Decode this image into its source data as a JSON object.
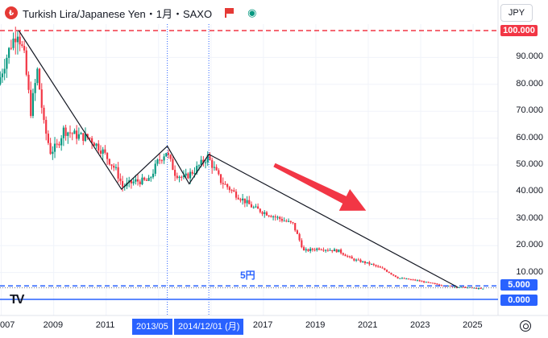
{
  "header": {
    "symbol_logo": "₺",
    "title": "Turkish Lira/Japanese Yen・1月・SAXO",
    "icons": [
      "flag-icon",
      "eye-icon"
    ]
  },
  "currency_button": "JPY",
  "price_axis": {
    "labels": [
      "90.000",
      "80.000",
      "70.000",
      "60.000",
      "50.000",
      "40.000",
      "30.000",
      "20.000",
      "10.000"
    ],
    "badges": [
      {
        "text": "100.000",
        "color": "#f23645"
      },
      {
        "text": "5.000",
        "color": "#2962ff"
      },
      {
        "text": "0.000",
        "color": "#2962ff"
      }
    ]
  },
  "time_axis": {
    "labels": [
      "007",
      "2009",
      "2011",
      "2017",
      "2019",
      "2021",
      "2023",
      "2025"
    ],
    "badges": [
      "2013/05",
      "2014/12/01 (月)"
    ]
  },
  "annotation": "5円",
  "branding": "TV",
  "colors": {
    "up": "#089981",
    "down": "#f23645",
    "trendline": "#131722",
    "blue": "#2962ff",
    "red_dashed": "#f23645",
    "arrow": "#f23645"
  },
  "chart_data": {
    "type": "candlestick",
    "ylim": [
      0,
      100
    ],
    "horizontal_lines": [
      {
        "value": 100,
        "style": "dashed",
        "color": "#f23645"
      },
      {
        "value": 5,
        "style": "dashed",
        "color": "#2962ff"
      },
      {
        "value": 0,
        "style": "solid",
        "color": "#2962ff"
      }
    ],
    "vertical_markers": [
      "2013-05",
      "2014-12"
    ],
    "trendline_points": [
      [
        "2007-09",
        100
      ],
      [
        "2011-08",
        41
      ],
      [
        "2013-05",
        57
      ],
      [
        "2014-03",
        43
      ],
      [
        "2014-12",
        54
      ],
      [
        "2024-06",
        4.5
      ]
    ],
    "price_path": [
      [
        "2006-12",
        80
      ],
      [
        "2007-03",
        88
      ],
      [
        "2007-06",
        95
      ],
      [
        "2007-09",
        100
      ],
      [
        "2007-12",
        90
      ],
      [
        "2008-03",
        70
      ],
      [
        "2008-06",
        85
      ],
      [
        "2008-09",
        65
      ],
      [
        "2008-12",
        55
      ],
      [
        "2009-03",
        57
      ],
      [
        "2009-06",
        63
      ],
      [
        "2009-12",
        61
      ],
      [
        "2010-06",
        60
      ],
      [
        "2010-12",
        55
      ],
      [
        "2011-06",
        48
      ],
      [
        "2011-09",
        42
      ],
      [
        "2012-03",
        44
      ],
      [
        "2012-09",
        44
      ],
      [
        "2013-01",
        51
      ],
      [
        "2013-05",
        55
      ],
      [
        "2013-09",
        47
      ],
      [
        "2014-01",
        45
      ],
      [
        "2014-06",
        48
      ],
      [
        "2014-12",
        53
      ],
      [
        "2015-06",
        44
      ],
      [
        "2016-01",
        39
      ],
      [
        "2016-09",
        34
      ],
      [
        "2017-06",
        31
      ],
      [
        "2018-03",
        28
      ],
      [
        "2018-08",
        18
      ],
      [
        "2019-03",
        19
      ],
      [
        "2019-12",
        18
      ],
      [
        "2020-06",
        15
      ],
      [
        "2021-03",
        13
      ],
      [
        "2021-09",
        11
      ],
      [
        "2022-03",
        8
      ],
      [
        "2022-12",
        7
      ],
      [
        "2023-06",
        6
      ],
      [
        "2024-01",
        5
      ],
      [
        "2024-06",
        4.6
      ],
      [
        "2025-01",
        4.3
      ],
      [
        "2025-05",
        3.9
      ]
    ],
    "arrow": {
      "from": [
        "2017-06",
        50
      ],
      "to": [
        "2020-12",
        33
      ]
    }
  }
}
